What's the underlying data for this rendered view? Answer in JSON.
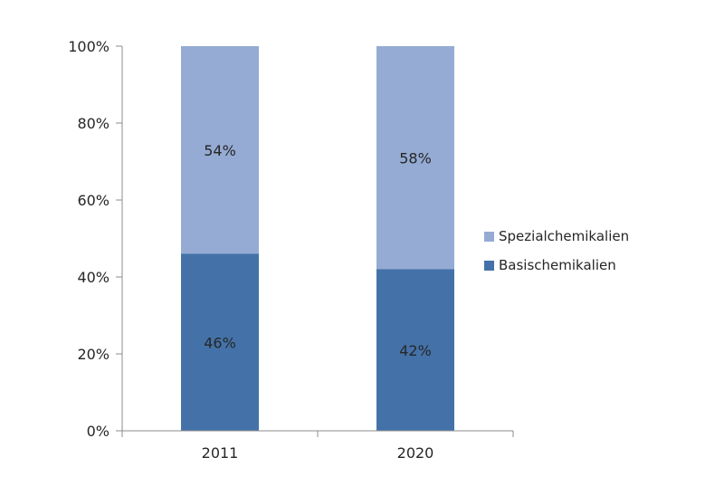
{
  "chart_data": {
    "type": "bar",
    "stacked": true,
    "categories": [
      "2011",
      "2020"
    ],
    "series": [
      {
        "name": "Basischemikalien",
        "values": [
          46,
          42
        ],
        "labels": [
          "46%",
          "42%"
        ],
        "color": "#4472a8"
      },
      {
        "name": "Spezialchemikalien",
        "values": [
          54,
          58
        ],
        "labels": [
          "54%",
          "58%"
        ],
        "color": "#95abd4"
      }
    ],
    "y_ticks": [
      "0%",
      "20%",
      "40%",
      "60%",
      "80%",
      "100%"
    ],
    "ylim": [
      0,
      100
    ],
    "grid": false,
    "legend_position": "right",
    "legend_order": [
      "Spezialchemikalien",
      "Basischemikalien"
    ],
    "axis_color": "#8c8c8c"
  }
}
